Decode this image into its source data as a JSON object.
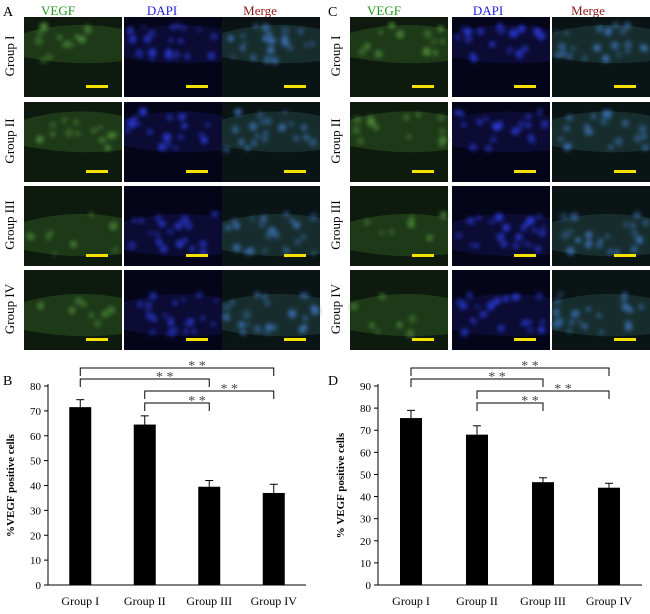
{
  "panels": {
    "A": {
      "letter": "A"
    },
    "C": {
      "letter": "C"
    },
    "B": {
      "letter": "B"
    },
    "D": {
      "letter": "D"
    }
  },
  "micrograph": {
    "columns": [
      "VEGF",
      "DAPI",
      "Merge"
    ],
    "column_colors": [
      "#1d9a1d",
      "#2222dd",
      "#8b1a1a"
    ],
    "rows": [
      "Group I",
      "Group II",
      "Group III",
      "Group IV"
    ],
    "scale_bar_color": "#f5e000"
  },
  "chart_data": [
    {
      "type": "bar",
      "panel": "B",
      "categories": [
        "Group I",
        "Group II",
        "Group III",
        "Group IV"
      ],
      "values": [
        71.5,
        64.5,
        39.5,
        37
      ],
      "errors": [
        3,
        3.5,
        2.5,
        3.5
      ],
      "ylabel": "%VEGF positive cells",
      "ylim": [
        0,
        80
      ],
      "yticks": [
        0,
        10,
        20,
        30,
        40,
        50,
        60,
        70,
        80
      ],
      "bar_color": "#000000",
      "significance": [
        {
          "from": 0,
          "to": 3,
          "label": "* *"
        },
        {
          "from": 0,
          "to": 2,
          "label": "* *"
        },
        {
          "from": 1,
          "to": 3,
          "label": "* *"
        },
        {
          "from": 1,
          "to": 2,
          "label": "* *"
        }
      ]
    },
    {
      "type": "bar",
      "panel": "D",
      "categories": [
        "Group I",
        "Group II",
        "Group III",
        "Group IV"
      ],
      "values": [
        75.5,
        68,
        46.5,
        44
      ],
      "errors": [
        3.5,
        4,
        2,
        2
      ],
      "ylabel": "% VEGF positive cells",
      "ylim": [
        0,
        90
      ],
      "yticks": [
        0,
        10,
        20,
        30,
        40,
        50,
        60,
        70,
        80,
        90
      ],
      "bar_color": "#000000",
      "significance": [
        {
          "from": 0,
          "to": 3,
          "label": "* *"
        },
        {
          "from": 0,
          "to": 2,
          "label": "* *"
        },
        {
          "from": 1,
          "to": 3,
          "label": "* *"
        },
        {
          "from": 1,
          "to": 2,
          "label": "* *"
        }
      ]
    }
  ]
}
